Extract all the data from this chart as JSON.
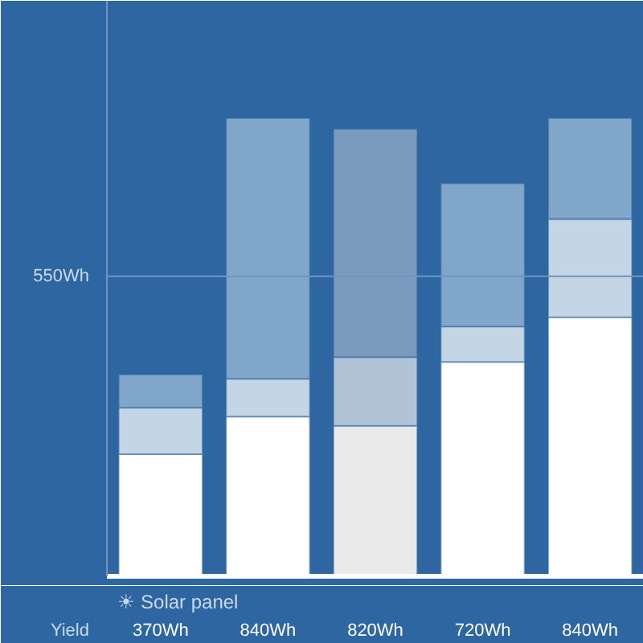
{
  "chart_data": {
    "type": "bar",
    "stacked": true,
    "categories": [
      null,
      null,
      null,
      null,
      null
    ],
    "series": [
      {
        "colors": [
          "#ffffff",
          "#ffffff",
          "#eaeaea",
          "#ffffff",
          "#ffffff"
        ],
        "values": [
          224,
          293,
          276,
          393,
          475
        ]
      },
      {
        "colors": [
          "#c4d5e5",
          "#c4d5e5",
          "#b0c4d6",
          "#c4d5e5",
          "#c4d5e5"
        ],
        "values": [
          85,
          69,
          126,
          65,
          180
        ]
      },
      {
        "colors": [
          "#80a6ca",
          "#80a6ca",
          "#7a9bbd",
          "#80a6ca",
          "#80a6ca"
        ],
        "values": [
          61,
          478,
          418,
          262,
          185
        ]
      }
    ],
    "ylim": [
      0,
      1055
    ],
    "yticks": [
      {
        "value": 550,
        "label": "550Wh"
      }
    ],
    "ref_lines": [
      {
        "axis": "y",
        "value": 550,
        "color": "#6f95c0"
      }
    ],
    "totals": [
      "370Wh",
      "840Wh",
      "820Wh",
      "720Wh",
      "840Wh"
    ],
    "annotations": [
      "Yield",
      "☀ Solar panel"
    ]
  }
}
